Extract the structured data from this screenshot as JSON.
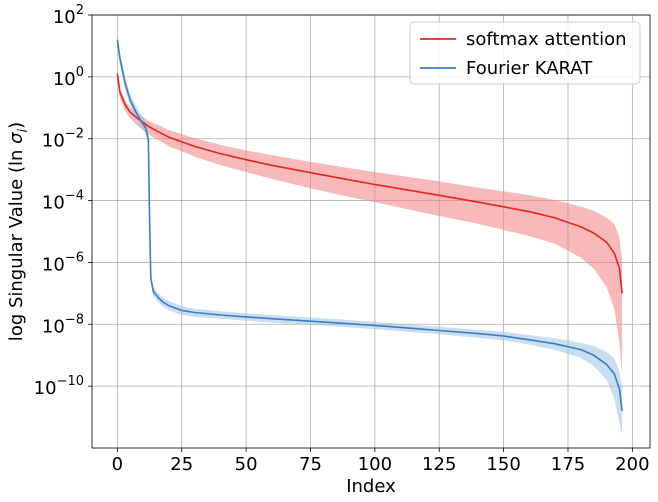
{
  "chart_data": {
    "type": "line",
    "title": "",
    "xlabel": "Index",
    "ylabel": "log Singular Value (ln σ_i)",
    "ylabel_parts": {
      "main": "log Singular Value (ln ",
      "sigma": "σ",
      "sub": "i",
      "close": ")"
    },
    "xlim": [
      -9.85,
      206.85
    ],
    "ylim_log10": [
      -12,
      2
    ],
    "y_scale": "log",
    "grid": true,
    "legend_position": "top-right",
    "x_ticks": [
      0,
      25,
      50,
      75,
      100,
      125,
      150,
      175,
      200
    ],
    "x_tick_labels": [
      "0",
      "25",
      "50",
      "75",
      "100",
      "125",
      "150",
      "175",
      "200"
    ],
    "y_ticks_log10": [
      2,
      0,
      -2,
      -4,
      -6,
      -8,
      -10
    ],
    "y_tick_labels": [
      {
        "base": "10",
        "exp": "2"
      },
      {
        "base": "10",
        "exp": "0"
      },
      {
        "base": "10",
        "exp": "−2"
      },
      {
        "base": "10",
        "exp": "−4"
      },
      {
        "base": "10",
        "exp": "−6"
      },
      {
        "base": "10",
        "exp": "−8"
      },
      {
        "base": "10",
        "exp": "−10"
      }
    ],
    "series": [
      {
        "name": "softmax attention",
        "color": "#e8251f",
        "band_color": "#f08080",
        "x": [
          0,
          1,
          3,
          5,
          8,
          12,
          16,
          20,
          25,
          30,
          40,
          50,
          60,
          75,
          90,
          100,
          110,
          125,
          140,
          150,
          160,
          170,
          180,
          185,
          190,
          193,
          195,
          196
        ],
        "log10": [
          0.1,
          -0.5,
          -0.9,
          -1.15,
          -1.35,
          -1.6,
          -1.78,
          -1.95,
          -2.1,
          -2.25,
          -2.48,
          -2.68,
          -2.86,
          -3.1,
          -3.33,
          -3.48,
          -3.62,
          -3.83,
          -4.05,
          -4.2,
          -4.36,
          -4.56,
          -4.85,
          -5.05,
          -5.35,
          -5.7,
          -6.2,
          -7.0
        ],
        "lower": [
          -0.1,
          -0.7,
          -1.1,
          -1.35,
          -1.6,
          -1.85,
          -2.05,
          -2.25,
          -2.4,
          -2.58,
          -2.85,
          -3.08,
          -3.3,
          -3.6,
          -3.88,
          -4.05,
          -4.23,
          -4.5,
          -4.75,
          -4.95,
          -5.15,
          -5.4,
          -5.85,
          -6.2,
          -6.8,
          -7.5,
          -8.6,
          -9.6
        ],
        "upper": [
          0.3,
          -0.35,
          -0.75,
          -1.0,
          -1.18,
          -1.42,
          -1.56,
          -1.72,
          -1.85,
          -1.98,
          -2.2,
          -2.38,
          -2.53,
          -2.75,
          -2.95,
          -3.08,
          -3.2,
          -3.38,
          -3.58,
          -3.7,
          -3.83,
          -3.98,
          -4.2,
          -4.33,
          -4.55,
          -4.75,
          -5.2,
          -5.9
        ]
      },
      {
        "name": "Fourier KARAT",
        "color": "#3a7dc0",
        "band_color": "#9ec2e6",
        "x": [
          0,
          1,
          3,
          5,
          7,
          9,
          11,
          12,
          12.5,
          13,
          14,
          16,
          18,
          20,
          25,
          30,
          40,
          50,
          60,
          75,
          90,
          100,
          110,
          125,
          140,
          150,
          160,
          170,
          180,
          185,
          190,
          193,
          195,
          196
        ],
        "log10": [
          1.2,
          0.6,
          -0.2,
          -0.75,
          -1.1,
          -1.4,
          -1.65,
          -2.0,
          -4.6,
          -6.5,
          -6.95,
          -7.15,
          -7.3,
          -7.4,
          -7.55,
          -7.62,
          -7.7,
          -7.76,
          -7.82,
          -7.9,
          -7.98,
          -8.04,
          -8.1,
          -8.2,
          -8.3,
          -8.38,
          -8.5,
          -8.63,
          -8.82,
          -9.0,
          -9.3,
          -9.6,
          -10.1,
          -10.8
        ],
        "lower": [
          1.0,
          0.4,
          -0.4,
          -0.95,
          -1.3,
          -1.6,
          -1.85,
          -2.2,
          -4.8,
          -6.7,
          -7.1,
          -7.3,
          -7.45,
          -7.55,
          -7.7,
          -7.76,
          -7.82,
          -7.88,
          -7.95,
          -8.02,
          -8.1,
          -8.16,
          -8.22,
          -8.32,
          -8.44,
          -8.52,
          -8.66,
          -8.83,
          -9.08,
          -9.35,
          -9.8,
          -10.4,
          -11.2,
          -11.6
        ],
        "upper": [
          1.4,
          0.8,
          0.0,
          -0.55,
          -0.9,
          -1.2,
          -1.45,
          -1.8,
          -4.4,
          -6.3,
          -6.8,
          -7.0,
          -7.15,
          -7.25,
          -7.42,
          -7.5,
          -7.58,
          -7.64,
          -7.7,
          -7.78,
          -7.86,
          -7.92,
          -7.98,
          -8.08,
          -8.18,
          -8.24,
          -8.35,
          -8.45,
          -8.6,
          -8.7,
          -8.9,
          -9.1,
          -9.5,
          -10.0
        ]
      }
    ]
  }
}
